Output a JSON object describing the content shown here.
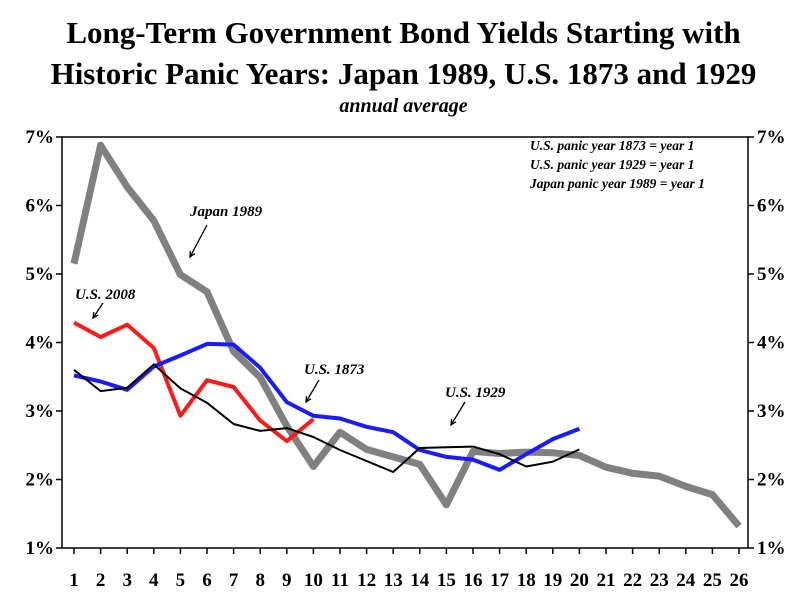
{
  "chart_data": {
    "type": "line",
    "title_line1": "Long-Term Government Bond Yields Starting with",
    "title_line2": "Historic Panic Years:  Japan 1989, U.S. 1873  and 1929",
    "subtitle": "annual average",
    "x": [
      1,
      2,
      3,
      4,
      5,
      6,
      7,
      8,
      9,
      10,
      11,
      12,
      13,
      14,
      15,
      16,
      17,
      18,
      19,
      20,
      21,
      22,
      23,
      24,
      25,
      26
    ],
    "x_tick_labels": [
      "1",
      "2",
      "3",
      "4",
      "5",
      "6",
      "7",
      "8",
      "9",
      "10",
      "11",
      "12",
      "13",
      "14",
      "15",
      "16",
      "17",
      "18",
      "19",
      "20",
      "21",
      "22",
      "23",
      "24",
      "25",
      "26"
    ],
    "ylim": [
      1,
      7
    ],
    "y_tick_labels": [
      "7%",
      "6%",
      "5%",
      "4%",
      "3%",
      "2%",
      "1%"
    ],
    "y_tick_values": [
      7,
      6,
      5,
      4,
      3,
      2,
      1
    ],
    "grid": false,
    "notes": [
      "U.S. panic year 1873 = year 1",
      "U.S. panic year 1929 = year 1",
      "Japan panic year 1989 = year 1"
    ],
    "series": [
      {
        "name": "Japan 1989",
        "color": "#808080",
        "width": 7,
        "x": [
          1,
          2,
          3,
          4,
          5,
          6,
          7,
          8,
          9,
          10,
          11,
          12,
          13,
          14,
          15,
          16,
          17,
          18,
          19,
          20,
          21,
          22,
          23,
          24,
          25,
          26
        ],
        "values": [
          5.15,
          6.88,
          6.27,
          5.78,
          4.99,
          4.74,
          3.87,
          3.49,
          2.78,
          2.19,
          2.69,
          2.44,
          2.33,
          2.22,
          1.63,
          2.41,
          2.38,
          2.4,
          2.39,
          2.35,
          2.18,
          2.09,
          2.05,
          1.9,
          1.78,
          1.32
        ]
      },
      {
        "name": "U.S. 2008",
        "color": "#ff1a1a",
        "width": 4,
        "x": [
          1,
          2,
          3,
          4,
          5,
          6,
          7,
          8,
          9,
          10
        ],
        "values": [
          4.29,
          4.08,
          4.26,
          3.92,
          2.93,
          3.45,
          3.35,
          2.86,
          2.56,
          2.88
        ]
      },
      {
        "name": "U.S. 1873",
        "color": "#1a1aff",
        "width": 4,
        "x": [
          1,
          2,
          3,
          4,
          5,
          6,
          7,
          8,
          9,
          10,
          11,
          12,
          13,
          14,
          15,
          16,
          17,
          18,
          19,
          20
        ],
        "values": [
          3.52,
          3.43,
          3.31,
          3.65,
          3.81,
          3.98,
          3.97,
          3.63,
          3.13,
          2.93,
          2.89,
          2.77,
          2.69,
          2.43,
          2.33,
          2.29,
          2.14,
          2.37,
          2.59,
          2.74
        ]
      },
      {
        "name": "U.S. 1929",
        "color": "#000000",
        "width": 2,
        "x": [
          1,
          2,
          3,
          4,
          5,
          6,
          7,
          8,
          9,
          10,
          11,
          12,
          13,
          14,
          15,
          16,
          17,
          18,
          19,
          20
        ],
        "values": [
          3.6,
          3.29,
          3.34,
          3.68,
          3.33,
          3.12,
          2.81,
          2.71,
          2.75,
          2.62,
          2.43,
          2.27,
          2.11,
          2.46,
          2.47,
          2.48,
          2.37,
          2.19,
          2.26,
          2.44
        ]
      }
    ],
    "annotations": [
      {
        "text": "Japan 1989",
        "series": "Japan 1989"
      },
      {
        "text": "U.S. 2008",
        "series": "U.S. 2008"
      },
      {
        "text": "U.S. 1873",
        "series": "U.S. 1873"
      },
      {
        "text": "U.S. 1929",
        "series": "U.S. 1929"
      }
    ]
  }
}
